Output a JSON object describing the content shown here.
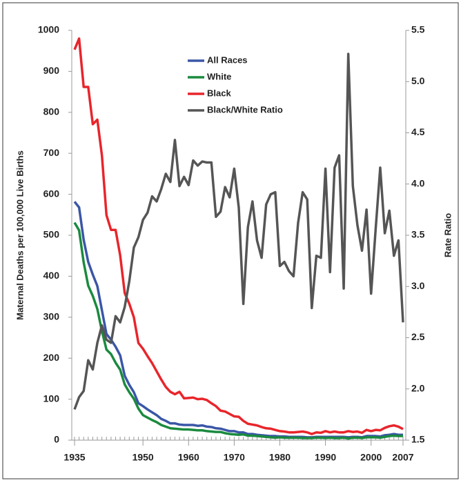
{
  "chart_data": {
    "type": "line",
    "y_label": "Maternal Deaths per 100,000 Live Births",
    "y2_label": "Rate Ratio",
    "x": [
      1935,
      1936,
      1937,
      1938,
      1939,
      1940,
      1941,
      1942,
      1943,
      1944,
      1945,
      1946,
      1947,
      1948,
      1949,
      1950,
      1951,
      1952,
      1953,
      1954,
      1955,
      1956,
      1957,
      1958,
      1959,
      1960,
      1961,
      1962,
      1963,
      1964,
      1965,
      1966,
      1967,
      1968,
      1969,
      1970,
      1971,
      1972,
      1973,
      1974,
      1975,
      1976,
      1977,
      1978,
      1979,
      1980,
      1981,
      1982,
      1983,
      1984,
      1985,
      1986,
      1987,
      1988,
      1989,
      1990,
      1991,
      1992,
      1993,
      1994,
      1995,
      1996,
      1997,
      1998,
      1999,
      2000,
      2001,
      2002,
      2003,
      2004,
      2005,
      2006,
      2007
    ],
    "xlim": [
      1935,
      2007
    ],
    "xticks": [
      1935,
      1950,
      1960,
      1970,
      1980,
      1990,
      2000,
      2007
    ],
    "ylim": [
      0,
      1000
    ],
    "yticks": [
      0,
      100,
      200,
      300,
      400,
      500,
      600,
      700,
      800,
      900,
      1000
    ],
    "y2lim": [
      1.5,
      5.5
    ],
    "y2ticks": [
      1.5,
      {
        "value": 2,
        "label": "2.0"
      },
      2.5,
      {
        "value": 3,
        "label": "3.0"
      },
      3.5,
      {
        "value": 4,
        "label": "4.0"
      },
      4.5,
      {
        "value": 5,
        "label": "5.0"
      },
      5.5
    ],
    "legend": "top",
    "series": [
      {
        "name": "All Races",
        "color": "#3a56a6",
        "values": [
          582,
          568,
          489,
          435,
          404,
          376,
          317,
          259,
          245,
          228,
          207,
          157,
          135,
          117,
          90,
          83,
          75,
          68,
          61,
          52,
          47,
          41,
          41,
          38,
          37,
          37,
          37,
          35,
          36,
          33,
          32,
          29,
          28,
          25,
          22,
          22,
          19,
          19,
          15,
          15,
          13,
          12,
          11,
          10,
          10,
          9,
          9,
          8,
          8,
          8,
          8,
          7,
          7,
          8,
          8,
          8,
          8,
          8,
          8,
          8,
          7,
          8,
          8,
          7,
          10,
          10,
          10,
          9,
          12,
          13,
          15,
          13,
          13
        ]
      },
      {
        "name": "White",
        "color": "#1a8a3e",
        "values": [
          531,
          512,
          434,
          377,
          352,
          320,
          266,
          221,
          210,
          189,
          172,
          136,
          117,
          101,
          77,
          61,
          55,
          49,
          44,
          37,
          33,
          29,
          28,
          27,
          26,
          26,
          25,
          24,
          24,
          22,
          21,
          20,
          20,
          17,
          15,
          14,
          13,
          14,
          11,
          11,
          10,
          9,
          8,
          7,
          6,
          7,
          6,
          6,
          6,
          6,
          5,
          5,
          5,
          6,
          6,
          5,
          6,
          5,
          5,
          6,
          4,
          6,
          6,
          5,
          7,
          7,
          7,
          6,
          8,
          10,
          11,
          10,
          10
        ]
      },
      {
        "name": "Black",
        "color": "#e8252b",
        "values": [
          953,
          980,
          862,
          862,
          771,
          782,
          695,
          549,
          513,
          513,
          451,
          359,
          333,
          300,
          237,
          223,
          205,
          188,
          168,
          148,
          130,
          118,
          112,
          118,
          102,
          103,
          104,
          100,
          101,
          98,
          90,
          83,
          72,
          70,
          64,
          58,
          57,
          47,
          40,
          38,
          36,
          32,
          29,
          28,
          25,
          22,
          21,
          19,
          19,
          20,
          21,
          19,
          15,
          19,
          18,
          22,
          19,
          21,
          19,
          19,
          22,
          20,
          21,
          18,
          25,
          22,
          25,
          24,
          30,
          34,
          36,
          33,
          27
        ]
      },
      {
        "name": "Black/White Ratio",
        "color": "#555555",
        "axis": "y2",
        "values": [
          1.8,
          1.92,
          1.98,
          2.28,
          2.19,
          2.45,
          2.62,
          2.48,
          2.45,
          2.71,
          2.65,
          2.8,
          3.05,
          3.38,
          3.48,
          3.65,
          3.72,
          3.88,
          3.83,
          3.95,
          4.1,
          4.02,
          4.43,
          3.98,
          4.07,
          3.99,
          4.23,
          4.18,
          4.22,
          4.21,
          4.21,
          3.68,
          3.73,
          3.97,
          3.87,
          4.15,
          3.77,
          2.83,
          3.58,
          3.83,
          3.45,
          3.28,
          3.8,
          3.9,
          3.92,
          3.2,
          3.24,
          3.15,
          3.1,
          3.62,
          3.92,
          3.85,
          2.79,
          3.3,
          3.28,
          4.15,
          3.14,
          4.16,
          4.28,
          2.98,
          5.27,
          3.98,
          3.6,
          3.35,
          3.75,
          2.93,
          3.56,
          4.16,
          3.52,
          3.74,
          3.3,
          3.45,
          2.65
        ]
      }
    ]
  }
}
